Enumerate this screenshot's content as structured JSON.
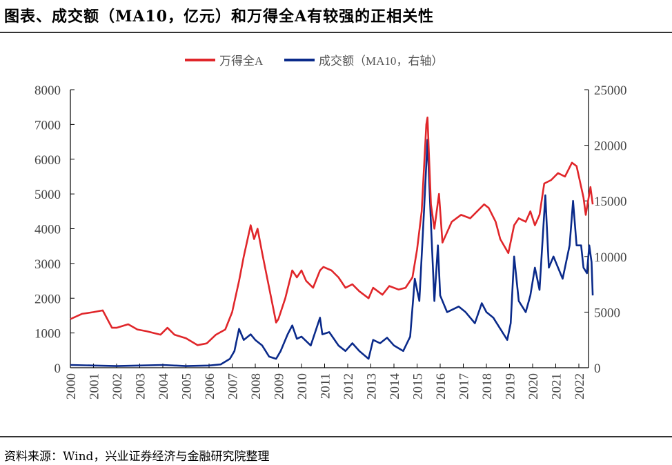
{
  "title": "图表、成交额（MA10，亿元）和万得全A有较强的正相关性",
  "source": "资料来源：Wind，兴业证券经济与金融研究院整理",
  "chart_data": {
    "type": "line",
    "title": "图表、成交额（MA10，亿元）和万得全A有较强的正相关性",
    "legend_position": "top-center",
    "grid": false,
    "x_ticks": [
      "2000",
      "2001",
      "2002",
      "2003",
      "2004",
      "2005",
      "2006",
      "2007",
      "2008",
      "2009",
      "2010",
      "2011",
      "2012",
      "2013",
      "2014",
      "2015",
      "2016",
      "2017",
      "2018",
      "2019",
      "2020",
      "2021",
      "2022"
    ],
    "y_left": {
      "range": [
        0,
        8000
      ],
      "ticks": [
        "0",
        "1000",
        "2000",
        "3000",
        "4000",
        "5000",
        "6000",
        "7000",
        "8000"
      ]
    },
    "y_right": {
      "range": [
        0,
        25000
      ],
      "ticks": [
        "0",
        "5000",
        "10000",
        "15000",
        "20000",
        "25000"
      ]
    },
    "series": [
      {
        "name": "万得全A",
        "axis": "left",
        "color": "#e0262a",
        "x": [
          2000.0,
          2000.5,
          2001.0,
          2001.4,
          2001.6,
          2001.8,
          2002.0,
          2002.5,
          2002.9,
          2003.3,
          2003.9,
          2004.2,
          2004.5,
          2005.0,
          2005.5,
          2005.9,
          2006.3,
          2006.7,
          2007.0,
          2007.3,
          2007.5,
          2007.8,
          2007.95,
          2008.1,
          2008.3,
          2008.6,
          2008.9,
          2009.0,
          2009.3,
          2009.6,
          2009.8,
          2010.0,
          2010.2,
          2010.5,
          2010.8,
          2010.95,
          2011.3,
          2011.6,
          2011.9,
          2012.2,
          2012.5,
          2012.9,
          2013.1,
          2013.5,
          2013.8,
          2014.2,
          2014.5,
          2014.8,
          2015.0,
          2015.2,
          2015.4,
          2015.45,
          2015.6,
          2015.75,
          2015.95,
          2016.1,
          2016.5,
          2016.9,
          2017.3,
          2017.6,
          2017.9,
          2018.1,
          2018.4,
          2018.6,
          2018.95,
          2019.2,
          2019.4,
          2019.7,
          2019.9,
          2020.1,
          2020.3,
          2020.5,
          2020.8,
          2021.1,
          2021.4,
          2021.7,
          2021.9,
          2022.2,
          2022.3,
          2022.5,
          2022.6
        ],
        "y": [
          1400,
          1550,
          1600,
          1650,
          1400,
          1150,
          1150,
          1250,
          1100,
          1050,
          950,
          1150,
          950,
          850,
          650,
          700,
          950,
          1100,
          1600,
          2500,
          3200,
          4100,
          3700,
          4000,
          3300,
          2300,
          1300,
          1400,
          2000,
          2800,
          2600,
          2800,
          2500,
          2300,
          2800,
          2900,
          2800,
          2600,
          2300,
          2400,
          2200,
          2000,
          2300,
          2100,
          2350,
          2250,
          2300,
          2600,
          3400,
          4500,
          7000,
          7200,
          4700,
          4000,
          5000,
          3600,
          4200,
          4400,
          4300,
          4500,
          4700,
          4600,
          4200,
          3700,
          3300,
          4100,
          4300,
          4200,
          4500,
          4100,
          4400,
          5300,
          5400,
          5600,
          5500,
          5900,
          5800,
          4900,
          4400,
          5200,
          4700
        ]
      },
      {
        "name": "成交额（MA10，右轴）",
        "axis": "right",
        "color": "#0a2a8a",
        "x": [
          2000.0,
          2001.0,
          2002.0,
          2003.0,
          2004.0,
          2005.0,
          2006.0,
          2006.5,
          2006.9,
          2007.1,
          2007.3,
          2007.5,
          2007.8,
          2008.0,
          2008.3,
          2008.6,
          2008.9,
          2009.1,
          2009.4,
          2009.6,
          2009.8,
          2010.0,
          2010.4,
          2010.8,
          2010.9,
          2011.2,
          2011.6,
          2011.9,
          2012.2,
          2012.5,
          2012.9,
          2013.1,
          2013.4,
          2013.7,
          2014.0,
          2014.4,
          2014.7,
          2014.9,
          2015.1,
          2015.3,
          2015.45,
          2015.6,
          2015.75,
          2015.9,
          2016.0,
          2016.3,
          2016.8,
          2017.1,
          2017.5,
          2017.8,
          2018.0,
          2018.3,
          2018.6,
          2018.9,
          2019.05,
          2019.2,
          2019.4,
          2019.7,
          2019.9,
          2020.1,
          2020.3,
          2020.55,
          2020.7,
          2020.9,
          2021.1,
          2021.3,
          2021.6,
          2021.75,
          2021.9,
          2022.1,
          2022.2,
          2022.35,
          2022.45,
          2022.55,
          2022.6
        ],
        "y": [
          250,
          200,
          150,
          200,
          250,
          150,
          200,
          300,
          800,
          1500,
          3500,
          2500,
          3000,
          2500,
          2000,
          1000,
          800,
          1500,
          3000,
          3800,
          2600,
          2800,
          2000,
          4500,
          3000,
          3200,
          2000,
          1500,
          2200,
          1500,
          800,
          2500,
          2200,
          2700,
          2000,
          1500,
          2800,
          8000,
          6000,
          14000,
          20500,
          13000,
          6000,
          11000,
          6500,
          5000,
          5500,
          5000,
          4000,
          5800,
          5000,
          4500,
          3500,
          2500,
          4000,
          10000,
          6000,
          5000,
          6500,
          9000,
          7000,
          15500,
          9000,
          10000,
          9000,
          8000,
          11000,
          15000,
          11000,
          11000,
          9000,
          8500,
          11000,
          9500,
          6500
        ]
      }
    ]
  }
}
